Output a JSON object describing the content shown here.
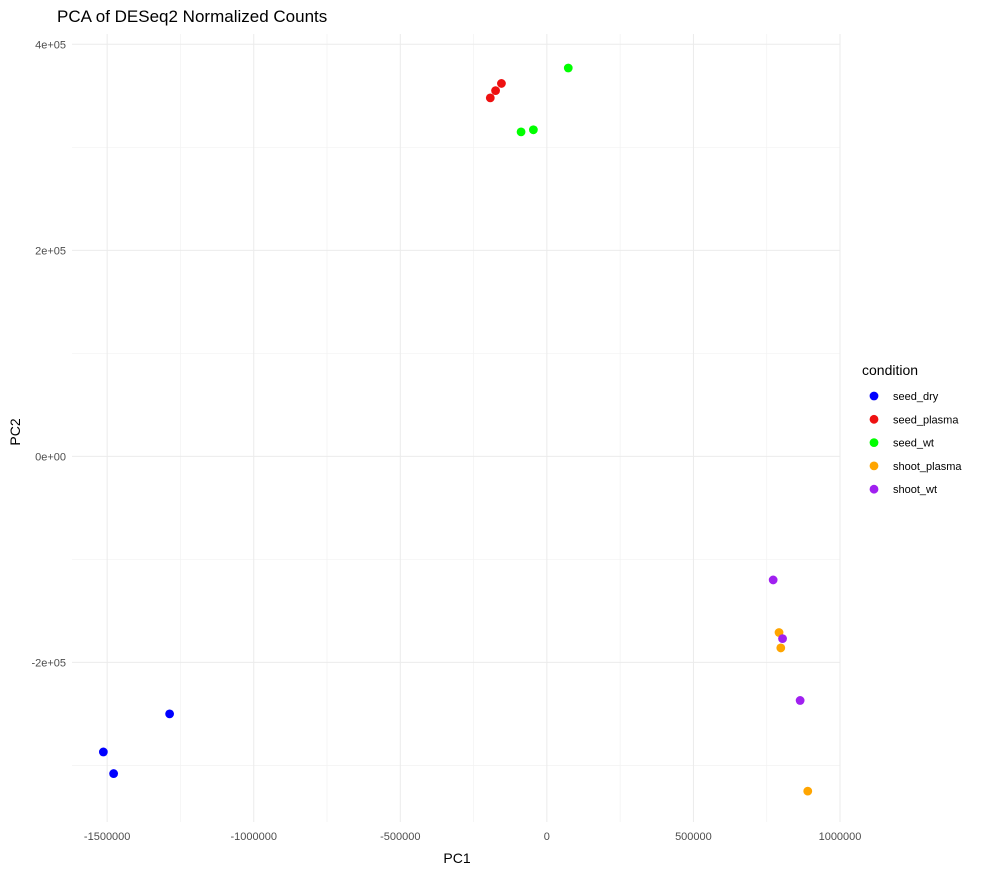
{
  "chart_data": {
    "type": "scatter",
    "title": "PCA of DESeq2 Normalized Counts",
    "xlabel": "PC1",
    "ylabel": "PC2",
    "xlim": [
      -1620000,
      1000000
    ],
    "ylim": [
      -355000,
      410000
    ],
    "x_ticks": [
      -1500000,
      -1000000,
      -500000,
      0,
      500000,
      1000000
    ],
    "x_tick_labels": [
      "-1500000",
      "-1000000",
      "-500000",
      "0",
      "500000",
      "1000000"
    ],
    "y_ticks": [
      -200000,
      0,
      200000,
      400000
    ],
    "y_tick_labels": [
      "-2e+05",
      "0e+00",
      "2e+05",
      "4e+05"
    ],
    "grid": true,
    "legend_title": "condition",
    "legend_position": "right",
    "series": [
      {
        "name": "seed_dry",
        "color": "#0000ff",
        "points": [
          [
            -1513000,
            -287000
          ],
          [
            -1478000,
            -308000
          ],
          [
            -1287000,
            -250000
          ]
        ]
      },
      {
        "name": "seed_plasma",
        "color": "#ee1111",
        "points": [
          [
            -193000,
            348000
          ],
          [
            -175000,
            355000
          ],
          [
            -155000,
            362000
          ]
        ]
      },
      {
        "name": "seed_wt",
        "color": "#00ff00",
        "points": [
          [
            -88000,
            315000
          ],
          [
            -46000,
            317000
          ],
          [
            73000,
            377000
          ]
        ]
      },
      {
        "name": "shoot_plasma",
        "color": "#ffa500",
        "points": [
          [
            792000,
            -171000
          ],
          [
            798000,
            -186000
          ],
          [
            890000,
            -325000
          ]
        ]
      },
      {
        "name": "shoot_wt",
        "color": "#a020f0",
        "points": [
          [
            772000,
            -120000
          ],
          [
            804000,
            -177000
          ],
          [
            864000,
            -237000
          ]
        ]
      }
    ]
  }
}
